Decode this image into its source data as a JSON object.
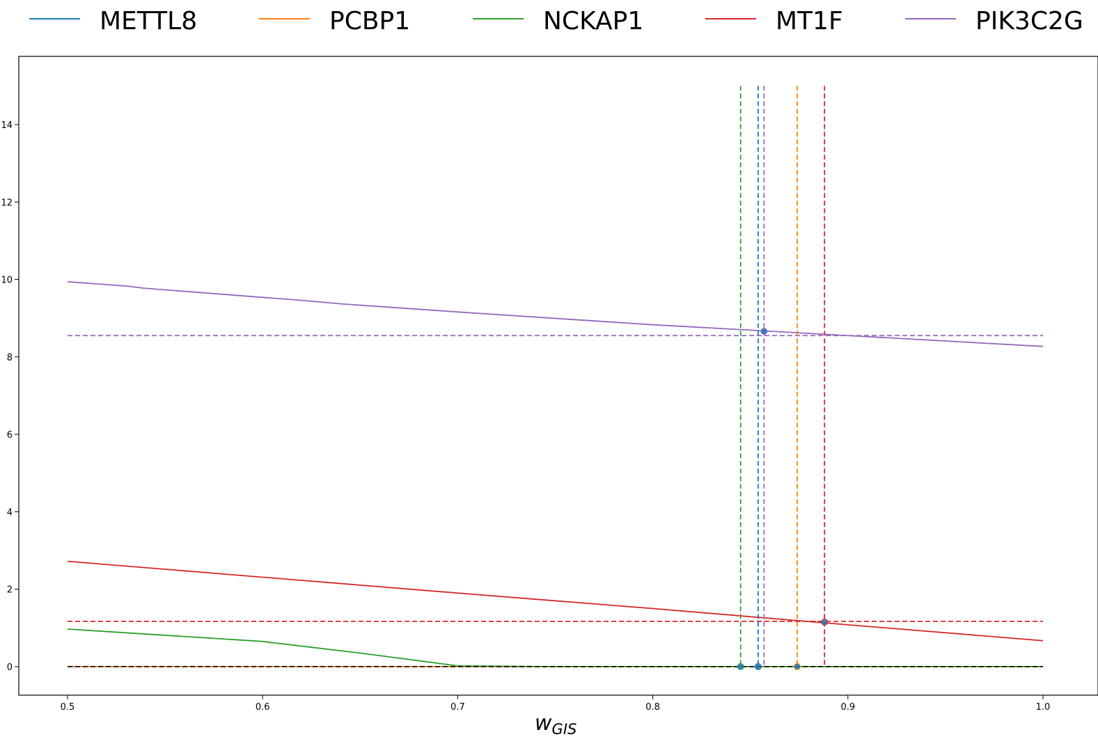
{
  "chart_data": {
    "type": "line",
    "title": "",
    "xlabel_main": "w",
    "xlabel_sub": "GIS",
    "ylabel": "",
    "xlim": [
      0.475,
      1.025
    ],
    "ylim": [
      -0.75,
      15.75
    ],
    "x_ticks": [
      0.5,
      0.6,
      0.7,
      0.8,
      0.9,
      1.0
    ],
    "x_tick_labels": [
      "0.5",
      "0.6",
      "0.7",
      "0.8",
      "0.9",
      "1.0"
    ],
    "y_ticks": [
      0,
      2,
      4,
      6,
      8,
      10,
      12,
      14
    ],
    "y_tick_labels": [
      "0",
      "2",
      "4",
      "6",
      "8",
      "10",
      "12",
      "14"
    ],
    "legend_position": "top (above plot)",
    "series": [
      {
        "name": "METTL8",
        "color": "#1f77b4",
        "points": [
          [
            0.5,
            0
          ],
          [
            1.0,
            0
          ]
        ],
        "threshold": 0,
        "crossing_x": 0.854,
        "marker_y": 0
      },
      {
        "name": "PCBP1",
        "color": "#ff7f0e",
        "points": [
          [
            0.5,
            0
          ],
          [
            1.0,
            0
          ]
        ],
        "threshold": 0,
        "crossing_x": 0.874,
        "marker_y": 0
      },
      {
        "name": "NCKAP1",
        "color": "#2ca02c",
        "points": [
          [
            0.5,
            0.97
          ],
          [
            0.6,
            0.65
          ],
          [
            0.65,
            0.35
          ],
          [
            0.7,
            0.02
          ],
          [
            0.75,
            0
          ],
          [
            1.0,
            0
          ]
        ],
        "threshold": 0,
        "crossing_x": 0.845,
        "marker_y": 0
      },
      {
        "name": "MT1F",
        "color": "#d62728",
        "points": [
          [
            0.5,
            2.72
          ],
          [
            0.6,
            2.31
          ],
          [
            0.7,
            1.9
          ],
          [
            0.8,
            1.5
          ],
          [
            0.9,
            1.08
          ],
          [
            1.0,
            0.67
          ]
        ],
        "threshold": 1.17,
        "crossing_x": 0.888,
        "marker_y": 1.15
      },
      {
        "name": "PIK3C2G",
        "color": "#9467bd",
        "points": [
          [
            0.5,
            9.94
          ],
          [
            0.53,
            9.83
          ],
          [
            0.54,
            9.77
          ],
          [
            0.62,
            9.46
          ],
          [
            0.64,
            9.37
          ],
          [
            0.7,
            9.16
          ],
          [
            0.8,
            8.83
          ],
          [
            0.9,
            8.55
          ],
          [
            1.0,
            8.27
          ]
        ],
        "threshold": 8.55,
        "crossing_x": 0.857,
        "marker_y": 8.66
      }
    ]
  }
}
